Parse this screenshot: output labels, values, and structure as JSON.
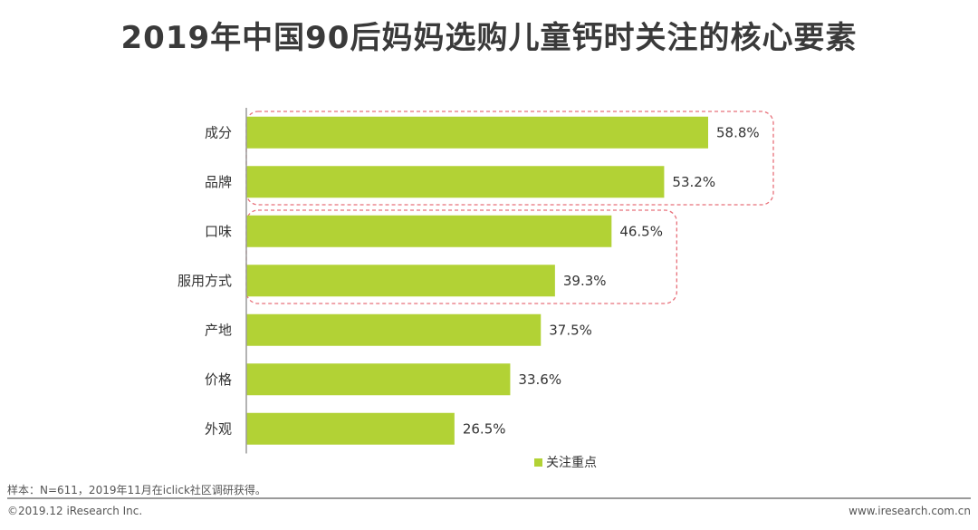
{
  "title": "2019年中国90后妈妈选购儿童钙时关注的核心要素",
  "chart_data": {
    "type": "bar",
    "orientation": "horizontal",
    "categories": [
      "成分",
      "品牌",
      "口味",
      "服用方式",
      "产地",
      "价格",
      "外观"
    ],
    "series": [
      {
        "name": "关注重点",
        "values": [
          58.8,
          53.2,
          46.5,
          39.3,
          37.5,
          33.6,
          26.5
        ],
        "labels": [
          "58.8%",
          "53.2%",
          "46.5%",
          "39.3%",
          "37.5%",
          "33.6%",
          "26.5%"
        ],
        "color": "#b2d235"
      }
    ],
    "legend": "bottom",
    "grid": false,
    "highlight_groups": [
      [
        "成分",
        "品牌"
      ],
      [
        "口味",
        "服用方式"
      ]
    ],
    "highlight_color": "#e8707a"
  },
  "footer": {
    "note": "样本：N=611，2019年11月在iclick社区调研获得。",
    "copyright": "©2019.12 iResearch Inc.",
    "website": "www.iresearch.com.cn"
  }
}
